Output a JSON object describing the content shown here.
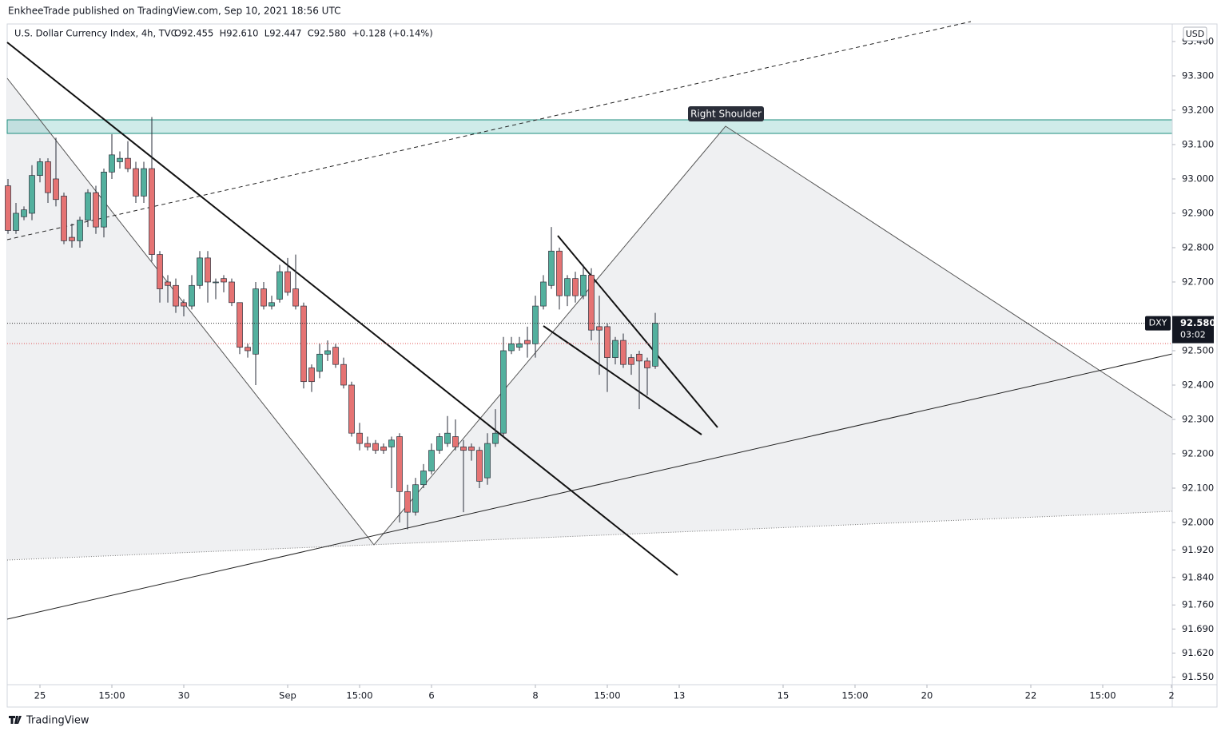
{
  "header": "EnkheeTrade published on TradingView.com, Sep 10, 2021 18:56 UTC",
  "footer": "TradingView",
  "chart_data": {
    "type": "candlestick",
    "title": "U.S. Dollar Currency Index, 4h, TVC",
    "ohlc_legend": "O92.455  H92.610  L92.447  C92.580  +0.128 (+0.14%)",
    "currency": "USD",
    "symbol": "DXY",
    "price_label": "92.580",
    "countdown": "03:02",
    "annotations": [
      "Right Shoulder"
    ],
    "up_color": "#53b09e",
    "down_color": "#e57373",
    "open": [
      92.98,
      92.85,
      92.89,
      92.9,
      93.01,
      93.05,
      93.0,
      92.95,
      92.83,
      92.82,
      92.88,
      92.96,
      92.86,
      93.02,
      93.05,
      93.06,
      93.03,
      92.95,
      93.03,
      92.78,
      92.7,
      92.69,
      92.64,
      92.63,
      92.69,
      92.77,
      92.7,
      92.71,
      92.7,
      92.64,
      92.51,
      92.49,
      92.68,
      92.63,
      92.65,
      92.73,
      92.68,
      92.63,
      92.45,
      92.44,
      92.49,
      92.51,
      92.46,
      92.4,
      92.26,
      92.23,
      92.23,
      92.22,
      92.22,
      92.25,
      92.09,
      92.03,
      92.11,
      92.15,
      92.21,
      92.23,
      92.25,
      92.22,
      92.22,
      92.21,
      92.13,
      92.23,
      92.26,
      92.5,
      92.51,
      92.53,
      92.52,
      92.63,
      92.69,
      92.79,
      92.66,
      92.71,
      92.66,
      92.72,
      92.57,
      92.57,
      92.48,
      92.53,
      92.48,
      92.49,
      92.47,
      92.455
    ],
    "high": [
      93.0,
      92.93,
      92.92,
      93.04,
      93.06,
      93.06,
      93.12,
      92.96,
      92.87,
      92.89,
      92.97,
      92.98,
      93.03,
      93.13,
      93.08,
      93.11,
      93.05,
      93.05,
      93.18,
      92.79,
      92.72,
      92.71,
      92.65,
      92.72,
      92.79,
      92.79,
      92.71,
      92.72,
      92.71,
      92.64,
      92.52,
      92.7,
      92.7,
      92.66,
      92.75,
      92.77,
      92.78,
      92.64,
      92.46,
      92.52,
      92.53,
      92.52,
      92.48,
      92.41,
      92.29,
      92.25,
      92.24,
      92.23,
      92.25,
      92.26,
      92.11,
      92.13,
      92.17,
      92.23,
      92.26,
      92.31,
      92.3,
      92.24,
      92.23,
      92.22,
      92.26,
      92.33,
      92.54,
      92.54,
      92.54,
      92.57,
      92.66,
      92.72,
      92.86,
      92.8,
      92.72,
      92.73,
      92.75,
      92.74,
      92.66,
      92.58,
      92.54,
      92.55,
      92.49,
      92.5,
      92.48,
      92.61
    ],
    "low": [
      92.84,
      92.84,
      92.88,
      92.88,
      92.99,
      92.93,
      92.92,
      92.81,
      92.8,
      92.8,
      92.86,
      92.84,
      92.83,
      93.0,
      93.03,
      93.02,
      92.93,
      92.93,
      92.76,
      92.64,
      92.64,
      92.61,
      92.6,
      92.62,
      92.68,
      92.64,
      92.65,
      92.67,
      92.63,
      92.49,
      92.48,
      92.4,
      92.62,
      92.62,
      92.64,
      92.66,
      92.62,
      92.39,
      92.38,
      92.42,
      92.47,
      92.45,
      92.39,
      92.25,
      92.21,
      92.21,
      92.2,
      92.2,
      92.1,
      92.0,
      91.98,
      92.02,
      92.1,
      92.14,
      92.2,
      92.22,
      92.21,
      92.03,
      92.18,
      92.1,
      92.11,
      92.22,
      92.25,
      92.49,
      92.5,
      92.48,
      92.48,
      92.62,
      92.68,
      92.62,
      92.63,
      92.64,
      92.65,
      92.53,
      92.43,
      92.38,
      92.46,
      92.45,
      92.43,
      92.33,
      92.37,
      92.447
    ],
    "close": [
      92.85,
      92.9,
      92.91,
      93.01,
      93.05,
      92.96,
      92.94,
      92.82,
      92.82,
      92.88,
      92.96,
      92.86,
      93.02,
      93.07,
      93.06,
      93.03,
      92.95,
      93.03,
      92.78,
      92.68,
      92.69,
      92.63,
      92.63,
      92.69,
      92.77,
      92.7,
      92.7,
      92.7,
      92.64,
      92.51,
      92.5,
      92.68,
      92.63,
      92.64,
      92.73,
      92.67,
      92.63,
      92.41,
      92.41,
      92.49,
      92.5,
      92.46,
      92.4,
      92.26,
      92.23,
      92.22,
      92.21,
      92.21,
      92.24,
      92.09,
      92.03,
      92.11,
      92.15,
      92.21,
      92.25,
      92.26,
      92.22,
      92.21,
      92.21,
      92.12,
      92.23,
      92.26,
      92.5,
      92.52,
      92.52,
      92.52,
      92.63,
      92.7,
      92.79,
      92.66,
      92.71,
      92.66,
      92.72,
      92.56,
      92.56,
      92.48,
      92.53,
      92.46,
      92.46,
      92.47,
      92.45,
      92.58
    ],
    "xlim": [
      -0.1,
      145.7
    ],
    "xticks": [
      {
        "value": 4,
        "label": "25"
      },
      {
        "value": 13,
        "label": "15:00"
      },
      {
        "value": 22,
        "label": "30"
      },
      {
        "value": 35,
        "label": "Sep"
      },
      {
        "value": 44,
        "label": "15:00"
      },
      {
        "value": 53,
        "label": "6"
      },
      {
        "value": 66,
        "label": "8"
      },
      {
        "value": 75,
        "label": "15:00"
      },
      {
        "value": 84,
        "label": "13"
      },
      {
        "value": 97,
        "label": "15"
      },
      {
        "value": 106,
        "label": "15:00"
      },
      {
        "value": 115,
        "label": "20"
      },
      {
        "value": 128,
        "label": "22"
      },
      {
        "value": 137,
        "label": "15:00"
      },
      {
        "value": 145.6,
        "label": "2"
      }
    ],
    "ylim": [
      91.528,
      93.451
    ],
    "yticks": [
      {
        "value": 93.4,
        "label": "93.400"
      },
      {
        "value": 93.3,
        "label": "93.300"
      },
      {
        "value": 93.2,
        "label": "93.200"
      },
      {
        "value": 93.1,
        "label": "93.100"
      },
      {
        "value": 93.0,
        "label": "93.000"
      },
      {
        "value": 92.9,
        "label": "92.900"
      },
      {
        "value": 92.8,
        "label": "92.800"
      },
      {
        "value": 92.7,
        "label": "92.700"
      },
      {
        "value": 92.5,
        "label": "92.500"
      },
      {
        "value": 92.4,
        "label": "92.400"
      },
      {
        "value": 92.3,
        "label": "92.300"
      },
      {
        "value": 92.2,
        "label": "92.200"
      },
      {
        "value": 92.1,
        "label": "92.100"
      },
      {
        "value": 92.0,
        "label": "92.000"
      },
      {
        "value": 91.92,
        "label": "91.920"
      },
      {
        "value": 91.84,
        "label": "91.840"
      },
      {
        "value": 91.76,
        "label": "91.760"
      },
      {
        "value": 91.69,
        "label": "91.690"
      },
      {
        "value": 91.62,
        "label": "91.620"
      },
      {
        "value": 91.55,
        "label": "91.550"
      }
    ]
  }
}
